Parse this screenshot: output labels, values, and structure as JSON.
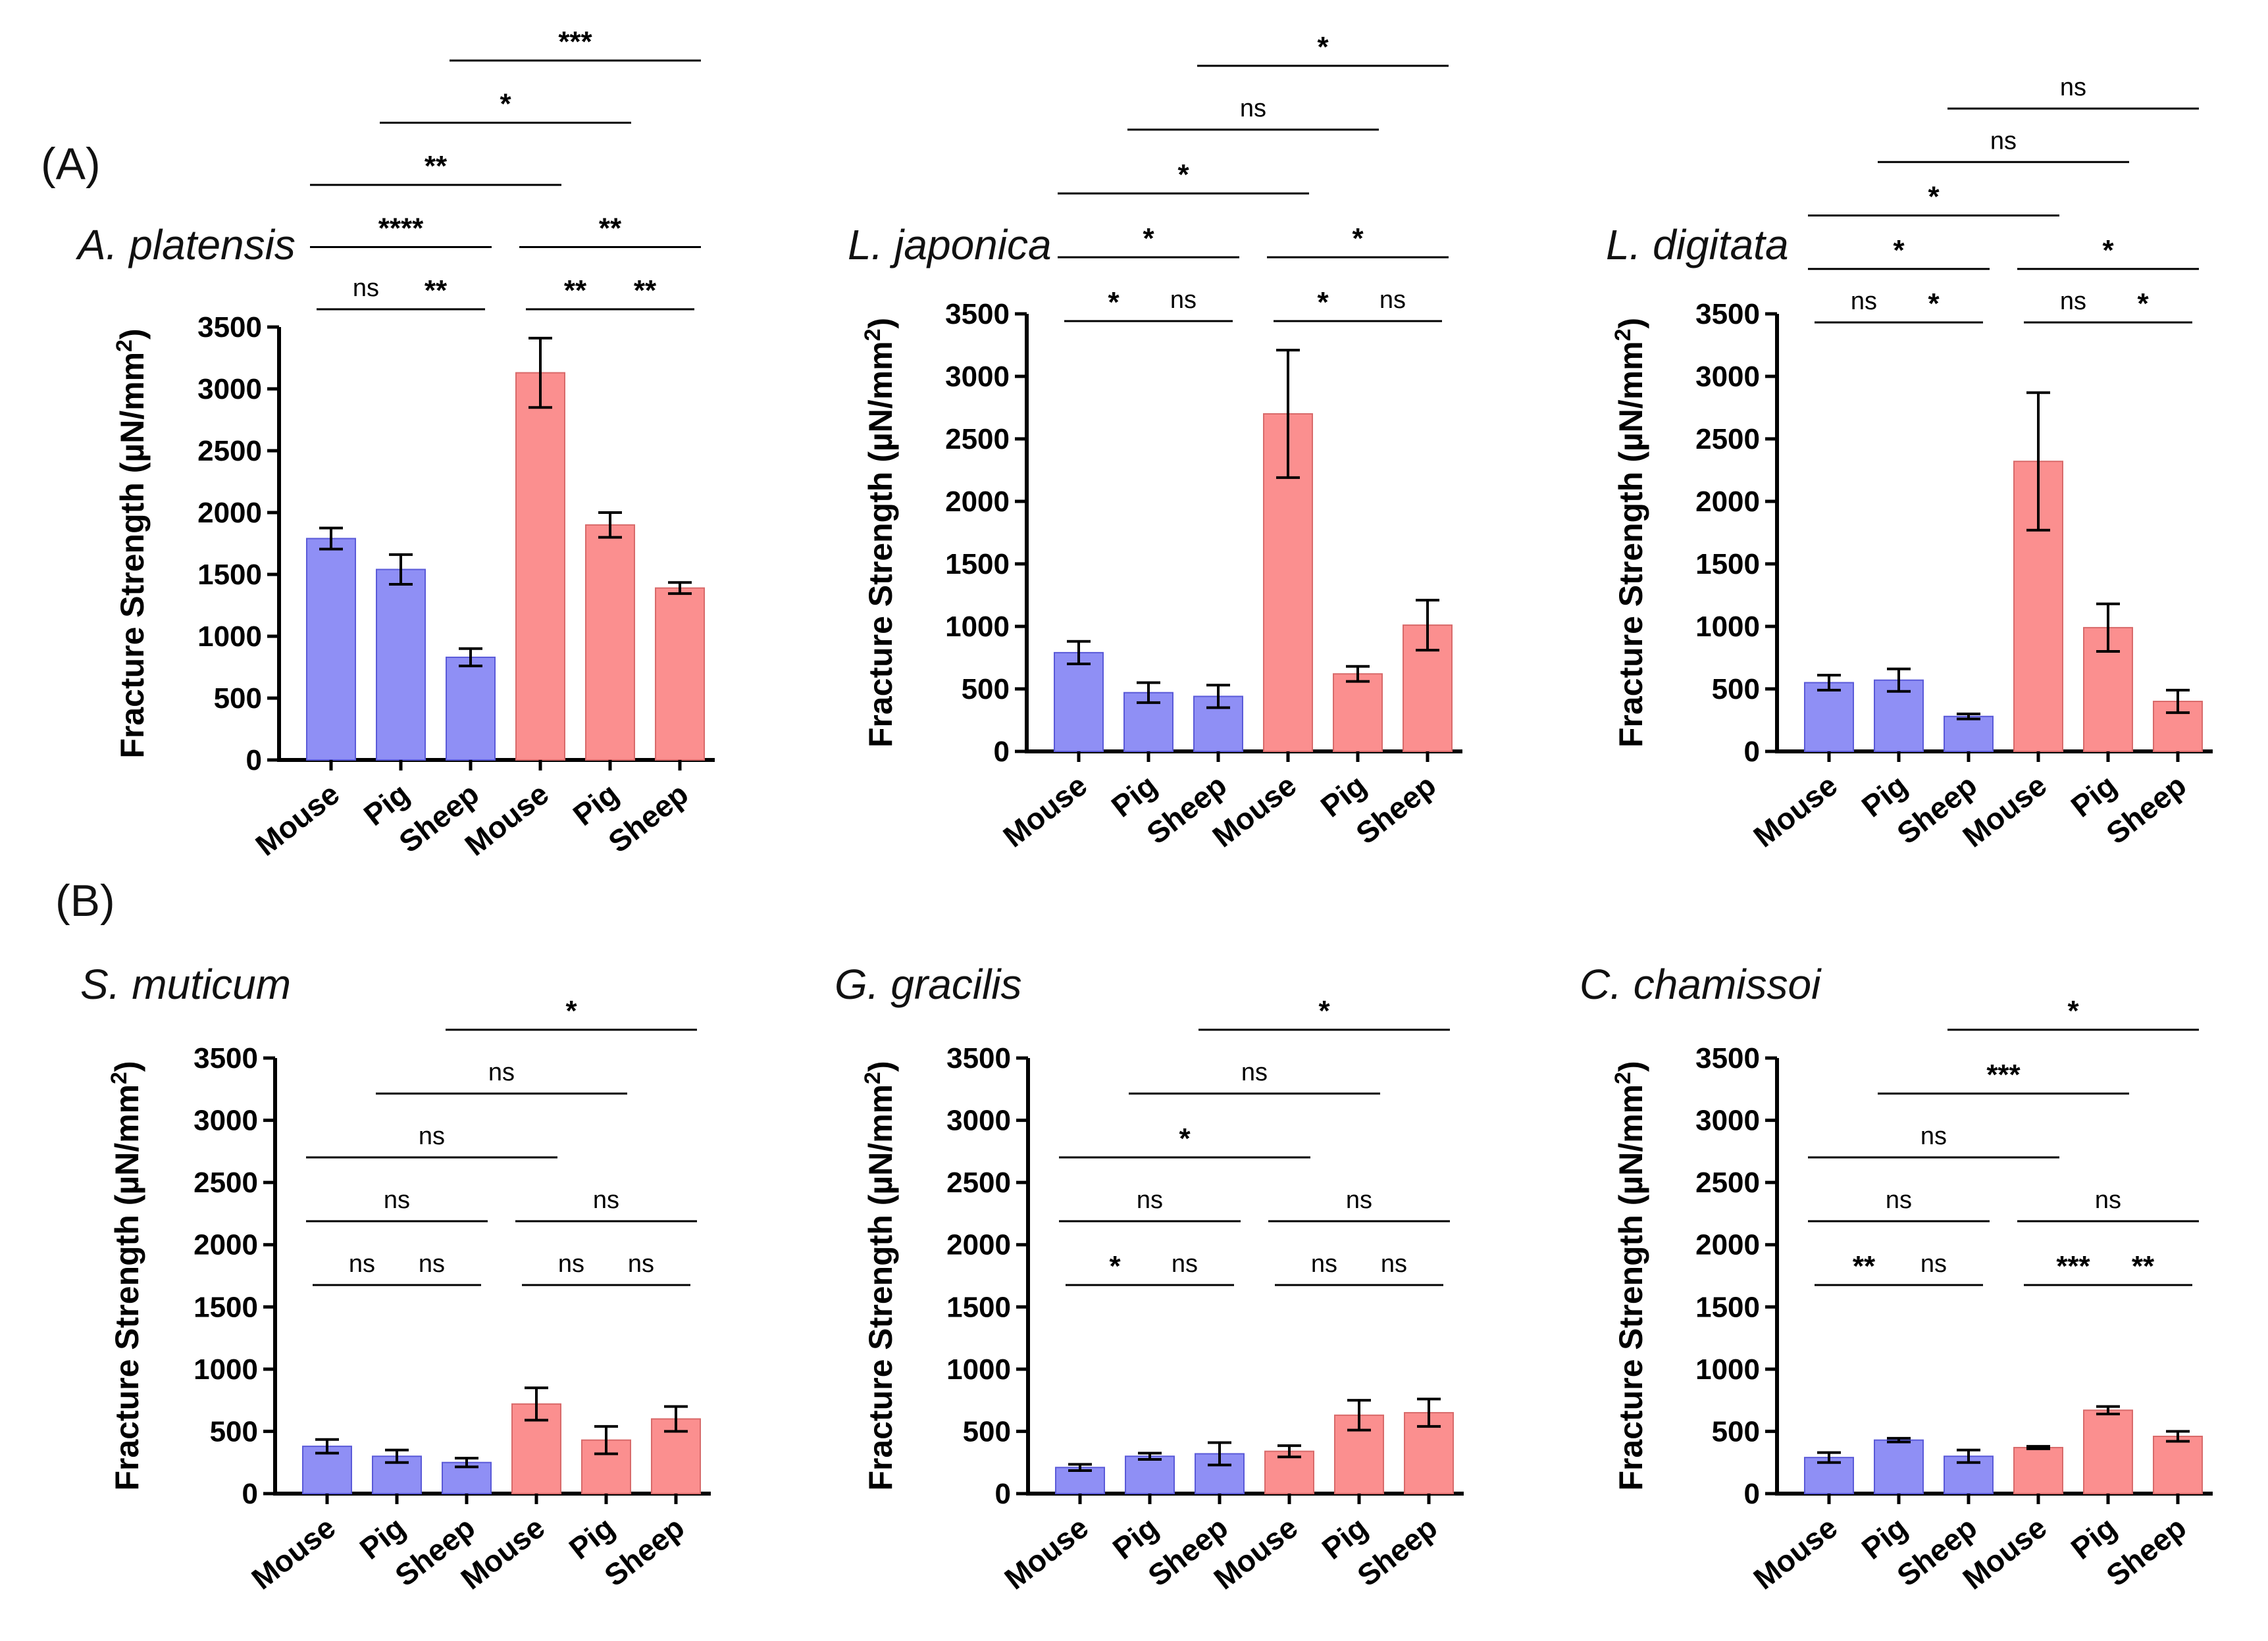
{
  "panel_labels": [
    "(A)",
    "(B)"
  ],
  "colors": {
    "blue_fill": "#8f8ff5",
    "blue_edge": "#5a5ad8",
    "red_fill": "#fb8f8f",
    "red_edge": "#d86a6a",
    "axis": "#000000"
  },
  "chart_data": [
    {
      "type": "bar",
      "title": "A. platensis",
      "ylabel": "Fracture Strength (µN/mm²)",
      "ylabel_main": "Fracture Strength (µN/mm",
      "ylabel_sup": "2",
      "ylabel_close": ")",
      "ylim": [
        0,
        3500
      ],
      "yticks": [
        "0",
        "500",
        "1000",
        "1500",
        "2000",
        "2500",
        "3000",
        "3500"
      ],
      "categories": [
        "Mouse",
        "Pig",
        "Sheep",
        "Mouse",
        "Pig",
        "Sheep"
      ],
      "group": [
        "blue",
        "blue",
        "blue",
        "red",
        "red",
        "red"
      ],
      "values": [
        1790,
        1540,
        830,
        3130,
        1900,
        1390
      ],
      "errors": [
        85,
        120,
        70,
        280,
        100,
        45
      ],
      "significance": [
        {
          "i": 0,
          "j": 1,
          "label": "ns"
        },
        {
          "i": 1,
          "j": 2,
          "label": "**"
        },
        {
          "i": 3,
          "j": 4,
          "label": "**"
        },
        {
          "i": 4,
          "j": 5,
          "label": "**"
        },
        {
          "i": 0,
          "j": 2,
          "label": "****"
        },
        {
          "i": 3,
          "j": 5,
          "label": "**"
        },
        {
          "i": 0,
          "j": 3,
          "label": "**"
        },
        {
          "i": 1,
          "j": 4,
          "label": "*"
        },
        {
          "i": 2,
          "j": 5,
          "label": "***"
        }
      ]
    },
    {
      "type": "bar",
      "title": "L. japonica",
      "ylabel": "Fracture Strength (µN/mm²)",
      "ylabel_main": "Fracture Strength (µN/mm",
      "ylabel_sup": "2",
      "ylabel_close": ")",
      "ylim": [
        0,
        3500
      ],
      "yticks": [
        "0",
        "500",
        "1000",
        "1500",
        "2000",
        "2500",
        "3000",
        "3500"
      ],
      "categories": [
        "Mouse",
        "Pig",
        "Sheep",
        "Mouse",
        "Pig",
        "Sheep"
      ],
      "group": [
        "blue",
        "blue",
        "blue",
        "red",
        "red",
        "red"
      ],
      "values": [
        790,
        470,
        440,
        2700,
        620,
        1010
      ],
      "errors": [
        90,
        80,
        90,
        510,
        60,
        200
      ],
      "significance": [
        {
          "i": 0,
          "j": 1,
          "label": "*"
        },
        {
          "i": 1,
          "j": 2,
          "label": "ns"
        },
        {
          "i": 3,
          "j": 4,
          "label": "*"
        },
        {
          "i": 4,
          "j": 5,
          "label": "ns"
        },
        {
          "i": 0,
          "j": 2,
          "label": "*"
        },
        {
          "i": 3,
          "j": 5,
          "label": "*"
        },
        {
          "i": 0,
          "j": 3,
          "label": "*"
        },
        {
          "i": 1,
          "j": 4,
          "label": "ns"
        },
        {
          "i": 2,
          "j": 5,
          "label": "*"
        }
      ]
    },
    {
      "type": "bar",
      "title": "L. digitata",
      "ylabel": "Fracture Strength (µN/mm²)",
      "ylabel_main": "Fracture Strength (µN/mm",
      "ylabel_sup": "2",
      "ylabel_close": ")",
      "ylim": [
        0,
        3500
      ],
      "yticks": [
        "0",
        "500",
        "1000",
        "1500",
        "2000",
        "2500",
        "3000",
        "3500"
      ],
      "categories": [
        "Mouse",
        "Pig",
        "Sheep",
        "Mouse",
        "Pig",
        "Sheep"
      ],
      "group": [
        "blue",
        "blue",
        "blue",
        "red",
        "red",
        "red"
      ],
      "values": [
        550,
        570,
        280,
        2320,
        990,
        400
      ],
      "errors": [
        60,
        90,
        20,
        550,
        190,
        90
      ],
      "significance": [
        {
          "i": 0,
          "j": 1,
          "label": "ns"
        },
        {
          "i": 1,
          "j": 2,
          "label": "*"
        },
        {
          "i": 3,
          "j": 4,
          "label": "ns"
        },
        {
          "i": 4,
          "j": 5,
          "label": "*"
        },
        {
          "i": 0,
          "j": 2,
          "label": "*"
        },
        {
          "i": 3,
          "j": 5,
          "label": "*"
        },
        {
          "i": 0,
          "j": 3,
          "label": "*"
        },
        {
          "i": 1,
          "j": 4,
          "label": "ns"
        },
        {
          "i": 2,
          "j": 5,
          "label": "ns"
        }
      ]
    },
    {
      "type": "bar",
      "title": "S. muticum",
      "ylabel": "Fracture Strength (µN/mm²)",
      "ylabel_main": "Fracture Strength (µN/mm",
      "ylabel_sup": "2",
      "ylabel_close": ")",
      "ylim": [
        0,
        3500
      ],
      "yticks": [
        "0",
        "500",
        "1000",
        "1500",
        "2000",
        "2500",
        "3000",
        "3500"
      ],
      "categories": [
        "Mouse",
        "Pig",
        "Sheep",
        "Mouse",
        "Pig",
        "Sheep"
      ],
      "group": [
        "blue",
        "blue",
        "blue",
        "red",
        "red",
        "red"
      ],
      "values": [
        380,
        300,
        250,
        720,
        430,
        600
      ],
      "errors": [
        55,
        50,
        35,
        130,
        110,
        100
      ],
      "significance": [
        {
          "i": 0,
          "j": 1,
          "label": "ns"
        },
        {
          "i": 1,
          "j": 2,
          "label": "ns"
        },
        {
          "i": 3,
          "j": 4,
          "label": "ns"
        },
        {
          "i": 4,
          "j": 5,
          "label": "ns"
        },
        {
          "i": 0,
          "j": 2,
          "label": "ns"
        },
        {
          "i": 3,
          "j": 5,
          "label": "ns"
        },
        {
          "i": 0,
          "j": 3,
          "label": "ns"
        },
        {
          "i": 1,
          "j": 4,
          "label": "ns"
        },
        {
          "i": 2,
          "j": 5,
          "label": "*"
        }
      ]
    },
    {
      "type": "bar",
      "title": "G. gracilis",
      "ylabel": "Fracture Strength (µN/mm²)",
      "ylabel_main": "Fracture Strength (µN/mm",
      "ylabel_sup": "2",
      "ylabel_close": ")",
      "ylim": [
        0,
        3500
      ],
      "yticks": [
        "0",
        "500",
        "1000",
        "1500",
        "2000",
        "2500",
        "3000",
        "3500"
      ],
      "categories": [
        "Mouse",
        "Pig",
        "Sheep",
        "Mouse",
        "Pig",
        "Sheep"
      ],
      "group": [
        "blue",
        "blue",
        "blue",
        "red",
        "red",
        "red"
      ],
      "values": [
        210,
        300,
        320,
        340,
        630,
        650
      ],
      "errors": [
        25,
        25,
        90,
        45,
        120,
        110
      ],
      "significance": [
        {
          "i": 0,
          "j": 1,
          "label": "*"
        },
        {
          "i": 1,
          "j": 2,
          "label": "ns"
        },
        {
          "i": 3,
          "j": 4,
          "label": "ns"
        },
        {
          "i": 4,
          "j": 5,
          "label": "ns"
        },
        {
          "i": 0,
          "j": 2,
          "label": "ns"
        },
        {
          "i": 3,
          "j": 5,
          "label": "ns"
        },
        {
          "i": 0,
          "j": 3,
          "label": "*"
        },
        {
          "i": 1,
          "j": 4,
          "label": "ns"
        },
        {
          "i": 2,
          "j": 5,
          "label": "*"
        }
      ]
    },
    {
      "type": "bar",
      "title": "C. chamissoi",
      "ylabel": "Fracture Strength (µN/mm²)",
      "ylabel_main": "Fracture Strength (µN/mm",
      "ylabel_sup": "2",
      "ylabel_close": ")",
      "ylim": [
        0,
        3500
      ],
      "yticks": [
        "0",
        "500",
        "1000",
        "1500",
        "2000",
        "2500",
        "3000",
        "3500"
      ],
      "categories": [
        "Mouse",
        "Pig",
        "Sheep",
        "Mouse",
        "Pig",
        "Sheep"
      ],
      "group": [
        "blue",
        "blue",
        "blue",
        "red",
        "red",
        "red"
      ],
      "values": [
        290,
        430,
        300,
        370,
        670,
        460
      ],
      "errors": [
        40,
        15,
        50,
        10,
        30,
        40
      ],
      "significance": [
        {
          "i": 0,
          "j": 1,
          "label": "**"
        },
        {
          "i": 1,
          "j": 2,
          "label": "ns"
        },
        {
          "i": 3,
          "j": 4,
          "label": "***"
        },
        {
          "i": 4,
          "j": 5,
          "label": "**"
        },
        {
          "i": 0,
          "j": 2,
          "label": "ns"
        },
        {
          "i": 3,
          "j": 5,
          "label": "ns"
        },
        {
          "i": 0,
          "j": 3,
          "label": "ns"
        },
        {
          "i": 1,
          "j": 4,
          "label": "***"
        },
        {
          "i": 2,
          "j": 5,
          "label": "*"
        }
      ]
    }
  ]
}
